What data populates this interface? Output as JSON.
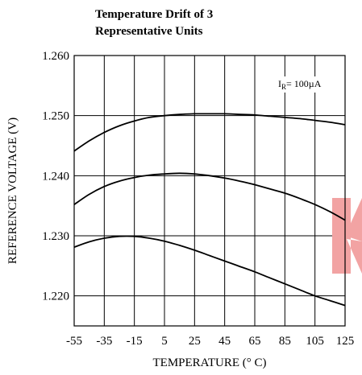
{
  "chart_data": {
    "type": "line",
    "title_lines": [
      "Temperature Drift of 3",
      "Representative Units"
    ],
    "xlabel": "TEMPERATURE (° C)",
    "ylabel": "REFERENCE VOLTAGE (V)",
    "xlim": [
      -55,
      125
    ],
    "ylim": [
      1.215,
      1.26
    ],
    "x_ticks": [
      -55,
      -35,
      -15,
      5,
      25,
      45,
      65,
      85,
      105,
      125
    ],
    "y_ticks": [
      1.26,
      1.25,
      1.24,
      1.23,
      1.22
    ],
    "y_tick_labels": [
      "1.260",
      "1.250",
      "1.240",
      "1.230",
      "1.220"
    ],
    "grid": true,
    "annotation": {
      "symbol": "I",
      "subscript": "R",
      "text": "= 100µA"
    },
    "x": [
      -55,
      -45,
      -35,
      -25,
      -15,
      -5,
      5,
      15,
      25,
      35,
      45,
      55,
      65,
      75,
      85,
      95,
      105,
      115,
      125
    ],
    "series": [
      {
        "values": [
          1.2441,
          1.2458,
          1.2472,
          1.2483,
          1.2491,
          1.2497,
          1.25,
          1.2502,
          1.2503,
          1.2503,
          1.2503,
          1.2502,
          1.2501,
          1.2499,
          1.2497,
          1.2495,
          1.2492,
          1.2489,
          1.2485
        ]
      },
      {
        "values": [
          1.2352,
          1.2369,
          1.2382,
          1.2391,
          1.2397,
          1.2401,
          1.2403,
          1.2404,
          1.2403,
          1.24,
          1.2396,
          1.2391,
          1.2385,
          1.2378,
          1.2371,
          1.2362,
          1.2352,
          1.234,
          1.2326
        ]
      },
      {
        "values": [
          1.2281,
          1.229,
          1.2296,
          1.2299,
          1.2299,
          1.2296,
          1.2291,
          1.2284,
          1.2276,
          1.2267,
          1.2258,
          1.2249,
          1.224,
          1.223,
          1.222,
          1.221,
          1.22,
          1.2192,
          1.2184
        ]
      }
    ]
  }
}
